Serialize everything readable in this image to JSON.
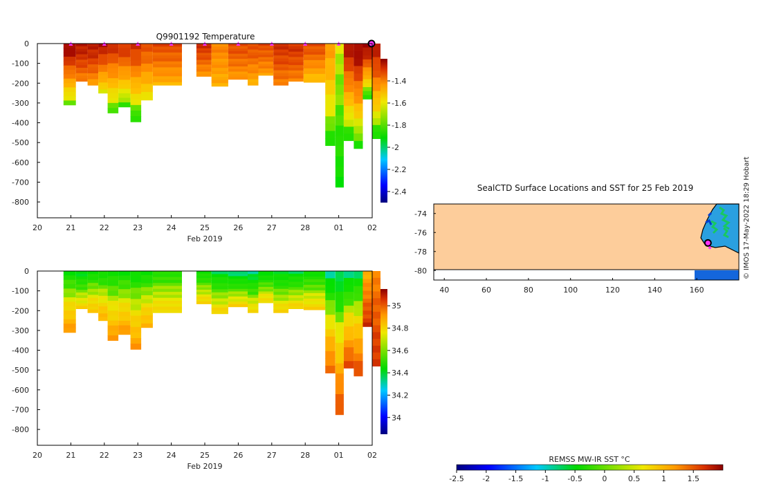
{
  "chart_data": [
    {
      "type": "heatmap",
      "title": "Q9901192  Temperature",
      "variable": "temperature",
      "xlabel": "Feb 2019",
      "x_ticks": [
        "20",
        "21",
        "22",
        "23",
        "24",
        "25",
        "26",
        "27",
        "28",
        "01",
        "02"
      ],
      "y_ticks": [
        "0",
        "-100",
        "-200",
        "-300",
        "-400",
        "-500",
        "-600",
        "-700",
        "-800"
      ],
      "ylim": [
        -880,
        0
      ],
      "colorbar": {
        "range": [
          -2.5,
          -1.2
        ],
        "ticks": [
          "-1.4",
          "-1.6",
          "-1.8",
          "-2",
          "-2.2",
          "-2.4"
        ],
        "tick_values": [
          -1.4,
          -1.6,
          -1.8,
          -2,
          -2.2,
          -2.4
        ]
      },
      "surface_markers": [
        21,
        22,
        23,
        24,
        25,
        26,
        27,
        28,
        29
      ],
      "last_marker": 30,
      "profiles": [
        {
          "t": 20.78,
          "depth": 310,
          "surface": -1.2,
          "deep": -1.8
        },
        {
          "t": 21.15,
          "depth": 190,
          "surface": -1.25,
          "deep": -1.45
        },
        {
          "t": 21.5,
          "depth": 210,
          "surface": -1.25,
          "deep": -1.5
        },
        {
          "t": 21.82,
          "depth": 250,
          "surface": -1.25,
          "deep": -1.7
        },
        {
          "t": 22.1,
          "depth": 350,
          "surface": -1.3,
          "deep": -1.85
        },
        {
          "t": 22.42,
          "depth": 320,
          "surface": -1.3,
          "deep": -1.85
        },
        {
          "t": 22.78,
          "depth": 395,
          "surface": -1.3,
          "deep": -1.9
        },
        {
          "t": 23.1,
          "depth": 285,
          "surface": -1.35,
          "deep": -1.7
        },
        {
          "t": 23.45,
          "depth": 210,
          "surface": -1.35,
          "deep": -1.55
        },
        {
          "t": 24.75,
          "depth": 165,
          "surface": -1.3,
          "deep": -1.5
        },
        {
          "t": 25.2,
          "depth": 215,
          "surface": -1.45,
          "deep": -1.55
        },
        {
          "t": 25.7,
          "depth": 180,
          "surface": -1.35,
          "deep": -1.5
        },
        {
          "t": 26.28,
          "depth": 210,
          "surface": -1.35,
          "deep": -1.55
        },
        {
          "t": 26.6,
          "depth": 160,
          "surface": -1.35,
          "deep": -1.5
        },
        {
          "t": 27.05,
          "depth": 210,
          "surface": -1.3,
          "deep": -1.45
        },
        {
          "t": 27.5,
          "depth": 190,
          "surface": -1.3,
          "deep": -1.45
        },
        {
          "t": 27.95,
          "depth": 195,
          "surface": -1.35,
          "deep": -1.6
        },
        {
          "t": 28.6,
          "depth": 515,
          "surface": -1.5,
          "deep": -1.9
        },
        {
          "t": 28.9,
          "depth": 725,
          "surface": -1.75,
          "deep": -1.95
        },
        {
          "t": 29.15,
          "depth": 490,
          "surface": -1.25,
          "deep": -1.9
        },
        {
          "t": 29.45,
          "depth": 530,
          "surface": -1.2,
          "deep": -1.9
        },
        {
          "t": 29.72,
          "depth": 280,
          "surface": -1.2,
          "deep": -1.9
        },
        {
          "t": 30.0,
          "depth": 480,
          "surface": -1.25,
          "deep": -1.9
        }
      ]
    },
    {
      "type": "heatmap",
      "title": "",
      "variable": "salinity",
      "xlabel": "Feb 2019",
      "x_ticks": [
        "20",
        "21",
        "22",
        "23",
        "24",
        "25",
        "26",
        "27",
        "28",
        "01",
        "02"
      ],
      "y_ticks": [
        "0",
        "-100",
        "-200",
        "-300",
        "-400",
        "-500",
        "-600",
        "-700",
        "-800"
      ],
      "ylim": [
        -880,
        0
      ],
      "colorbar": {
        "range": [
          33.85,
          35.15
        ],
        "ticks": [
          "35",
          "34.8",
          "34.6",
          "34.4",
          "34.2",
          "34"
        ],
        "tick_values": [
          35,
          34.8,
          34.6,
          34.4,
          34.2,
          34
        ]
      },
      "profiles": [
        {
          "t": 20.78,
          "depth": 310,
          "surface": 34.4,
          "deep": 34.85
        },
        {
          "t": 21.15,
          "depth": 190,
          "surface": 34.35,
          "deep": 34.7
        },
        {
          "t": 21.5,
          "depth": 210,
          "surface": 34.4,
          "deep": 34.75
        },
        {
          "t": 21.82,
          "depth": 250,
          "surface": 34.4,
          "deep": 34.8
        },
        {
          "t": 22.1,
          "depth": 350,
          "surface": 34.4,
          "deep": 34.85
        },
        {
          "t": 22.42,
          "depth": 320,
          "surface": 34.4,
          "deep": 34.85
        },
        {
          "t": 22.78,
          "depth": 395,
          "surface": 34.4,
          "deep": 34.85
        },
        {
          "t": 23.1,
          "depth": 285,
          "surface": 34.4,
          "deep": 34.8
        },
        {
          "t": 23.45,
          "depth": 210,
          "surface": 34.45,
          "deep": 34.7
        },
        {
          "t": 24.75,
          "depth": 165,
          "surface": 34.4,
          "deep": 34.7
        },
        {
          "t": 25.2,
          "depth": 215,
          "surface": 34.35,
          "deep": 34.7
        },
        {
          "t": 25.7,
          "depth": 180,
          "surface": 34.3,
          "deep": 34.7
        },
        {
          "t": 26.28,
          "depth": 210,
          "surface": 34.3,
          "deep": 34.7
        },
        {
          "t": 26.6,
          "depth": 160,
          "surface": 34.35,
          "deep": 34.7
        },
        {
          "t": 27.05,
          "depth": 210,
          "surface": 34.35,
          "deep": 34.7
        },
        {
          "t": 27.5,
          "depth": 190,
          "surface": 34.35,
          "deep": 34.7
        },
        {
          "t": 27.95,
          "depth": 195,
          "surface": 34.4,
          "deep": 34.7
        },
        {
          "t": 28.6,
          "depth": 515,
          "surface": 34.3,
          "deep": 34.95
        },
        {
          "t": 28.9,
          "depth": 725,
          "surface": 34.3,
          "deep": 35.0
        },
        {
          "t": 29.15,
          "depth": 490,
          "surface": 34.3,
          "deep": 35.0
        },
        {
          "t": 29.45,
          "depth": 530,
          "surface": 34.35,
          "deep": 35.0
        },
        {
          "t": 29.72,
          "depth": 280,
          "surface": 34.8,
          "deep": 35.05
        },
        {
          "t": 30.0,
          "depth": 480,
          "surface": 34.9,
          "deep": 35.05
        }
      ]
    },
    {
      "type": "map",
      "title": "SealCTD Surface Locations and SST for 25 Feb 2019",
      "x_ticks": [
        "40",
        "60",
        "80",
        "100",
        "120",
        "140",
        "160"
      ],
      "y_ticks": [
        "-74",
        "-76",
        "-78",
        "-80"
      ],
      "xlim": [
        35,
        180
      ],
      "ylim": [
        -81,
        -73
      ],
      "locations": [
        {
          "lon": 165.3,
          "lat": -77.1,
          "marker": "circle"
        },
        {
          "lon": 166.2,
          "lat": -77.6,
          "marker": "dot"
        }
      ],
      "credit": "© IMOS 17-May-2022 18:29 Hobart"
    }
  ],
  "sst_colorbar": {
    "label": "REMSS MW-IR SST °C",
    "range": [
      -2.5,
      2.0
    ],
    "ticks": [
      "-2.5",
      "-2",
      "-1.5",
      "-1",
      "-0.5",
      "0",
      "0.5",
      "1",
      "1.5"
    ],
    "tick_values": [
      -2.5,
      -2,
      -1.5,
      -1,
      -0.5,
      0,
      0.5,
      1,
      1.5
    ]
  },
  "colors": {
    "jet": [
      "#00007f",
      "#0000ff",
      "#0080ff",
      "#00d0ff",
      "#00e000",
      "#30e000",
      "#e8e800",
      "#ffc000",
      "#ff8a00",
      "#e04000",
      "#9a0000"
    ],
    "land": "#fdcd9b",
    "ocean": "#1466dc",
    "marker": "#ff33ff"
  }
}
